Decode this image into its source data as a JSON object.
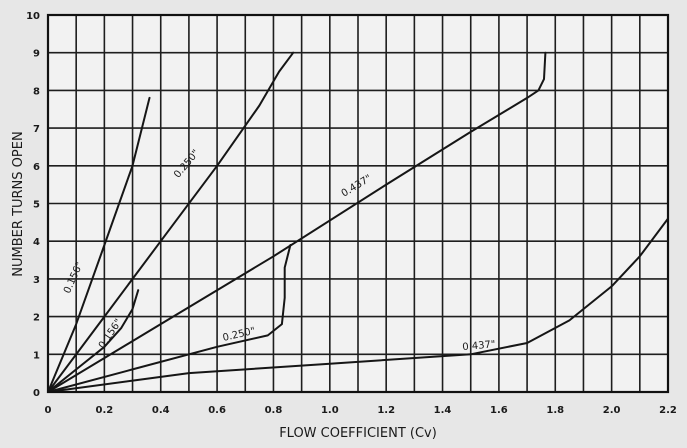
{
  "chart_data": {
    "type": "line",
    "title": "",
    "xlabel": "FLOW COEFFICIENT (Cv)",
    "ylabel": "NUMBER TURNS OPEN",
    "xlim": [
      0,
      2.2
    ],
    "ylim": [
      0,
      10
    ],
    "xticks": [
      "0",
      "0.2",
      "0.4",
      "0.6",
      "0.8",
      "1.0",
      "1.2",
      "1.4",
      "1.6",
      "1.8",
      "2.0",
      "2.2"
    ],
    "yticks": [
      "0",
      "1",
      "2",
      "3",
      "4",
      "5",
      "6",
      "7",
      "8",
      "9",
      "10"
    ],
    "grid": true,
    "series": [
      {
        "name": "0.156\"",
        "points": [
          [
            0,
            0
          ],
          [
            0.1,
            1.8
          ],
          [
            0.2,
            3.9
          ],
          [
            0.3,
            6.0
          ],
          [
            0.36,
            7.8
          ]
        ]
      },
      {
        "name": "0.250\"",
        "points": [
          [
            0,
            0
          ],
          [
            0.2,
            2.0
          ],
          [
            0.4,
            4.0
          ],
          [
            0.6,
            6.0
          ],
          [
            0.75,
            7.6
          ],
          [
            0.82,
            8.5
          ],
          [
            0.87,
            9.0
          ]
        ]
      },
      {
        "name": "0.437\"",
        "points": [
          [
            0,
            0
          ],
          [
            0.4,
            1.8
          ],
          [
            0.8,
            3.6
          ],
          [
            1.2,
            5.5
          ],
          [
            1.5,
            6.9
          ],
          [
            1.7,
            7.8
          ],
          [
            1.74,
            8.0
          ],
          [
            1.76,
            8.3
          ],
          [
            1.765,
            9.0
          ]
        ]
      },
      {
        "name": "0.156\"",
        "points": [
          [
            0,
            0
          ],
          [
            0.1,
            0.6
          ],
          [
            0.2,
            1.2
          ],
          [
            0.26,
            1.7
          ],
          [
            0.3,
            2.2
          ],
          [
            0.32,
            2.7
          ]
        ]
      },
      {
        "name": "0.250\"",
        "points": [
          [
            0,
            0
          ],
          [
            0.3,
            0.6
          ],
          [
            0.6,
            1.2
          ],
          [
            0.78,
            1.5
          ],
          [
            0.83,
            1.8
          ],
          [
            0.84,
            2.5
          ],
          [
            0.84,
            3.3
          ],
          [
            0.86,
            3.9
          ]
        ]
      },
      {
        "name": "0.437\"",
        "points": [
          [
            0,
            0
          ],
          [
            0.5,
            0.5
          ],
          [
            1.0,
            0.75
          ],
          [
            1.5,
            1.0
          ],
          [
            1.7,
            1.3
          ],
          [
            1.85,
            1.9
          ],
          [
            2.0,
            2.8
          ],
          [
            2.1,
            3.6
          ],
          [
            2.2,
            4.6
          ]
        ]
      }
    ],
    "curve_labels": [
      "0.156\"",
      "0.250\"",
      "0.437\"",
      "0.156\"",
      "0.250\"",
      "0.437\""
    ]
  }
}
